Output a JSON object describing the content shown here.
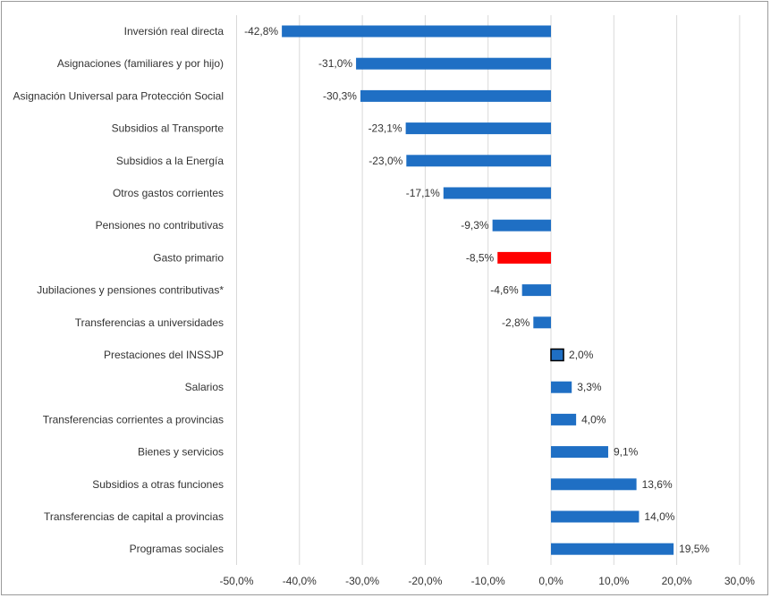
{
  "chart_data": {
    "type": "bar",
    "orientation": "horizontal",
    "title": "",
    "xlabel": "",
    "ylabel": "",
    "xlim": [
      -50,
      30
    ],
    "grid": "vertical",
    "categories": [
      "Inversión real directa",
      "Asignaciones (familiares y por hijo)",
      "Asignación Universal para Protección Social",
      "Subsidios al Transporte",
      "Subsidios a la Energía",
      "Otros gastos corrientes",
      "Pensiones no contributivas",
      "Gasto primario",
      "Jubilaciones y pensiones contributivas*",
      "Transferencias a universidades",
      "Prestaciones del INSSJP",
      "Salarios",
      "Transferencias corrientes a provincias",
      "Bienes y servicios",
      "Subsidios a otras funciones",
      "Transferencias de capital a provincias",
      "Programas sociales"
    ],
    "values": [
      -42.8,
      -31.0,
      -30.3,
      -23.1,
      -23.0,
      -17.1,
      -9.3,
      -8.5,
      -4.6,
      -2.8,
      2.0,
      3.3,
      4.0,
      9.1,
      13.6,
      14.0,
      19.5
    ],
    "value_labels": [
      "-42,8%",
      "-31,0%",
      "-30,3%",
      "-23,1%",
      "-23,0%",
      "-17,1%",
      "-9,3%",
      "-8,5%",
      "-4,6%",
      "-2,8%",
      "2,0%",
      "3,3%",
      "4,0%",
      "9,1%",
      "13,6%",
      "14,0%",
      "19,5%"
    ],
    "bar_colors": [
      "#1f6fc4",
      "#1f6fc4",
      "#1f6fc4",
      "#1f6fc4",
      "#1f6fc4",
      "#1f6fc4",
      "#1f6fc4",
      "#ff0000",
      "#1f6fc4",
      "#1f6fc4",
      "#1f6fc4",
      "#1f6fc4",
      "#1f6fc4",
      "#1f6fc4",
      "#1f6fc4",
      "#1f6fc4",
      "#1f6fc4"
    ],
    "bar_outlined": [
      false,
      false,
      false,
      false,
      false,
      false,
      false,
      false,
      false,
      false,
      true,
      false,
      false,
      false,
      false,
      false,
      false
    ],
    "xticks": [
      -50,
      -40,
      -30,
      -20,
      -10,
      0,
      10,
      20,
      30
    ],
    "xtick_labels": [
      "-50,0%",
      "-40,0%",
      "-30,0%",
      "-20,0%",
      "-10,0%",
      "0,0%",
      "10,0%",
      "20,0%",
      "30,0%"
    ]
  }
}
